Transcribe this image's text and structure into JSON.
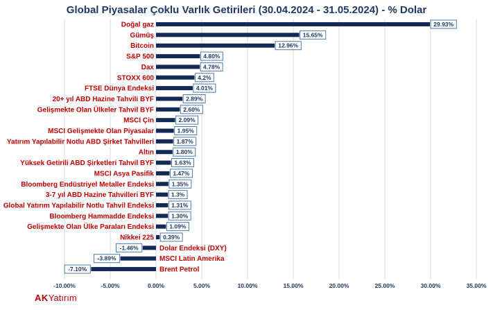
{
  "chart_data": {
    "type": "bar",
    "orientation": "horizontal",
    "title": "Global Piyasalar Çoklu Varlık Getirileri (30.04.2024 - 31.05.2024) - % Dolar",
    "categories": [
      "Doğal gaz",
      "Gümüş",
      "Bitcoin",
      "S&P 500",
      "Dax",
      "STOXX 600",
      "FTSE Dünya Endeksi",
      "20+ yıl ABD Hazine Tahvili BYF",
      "Gelişmekte Olan Ülkeler Tahvil BYF",
      "MSCI Çin",
      "MSCI Gelişmekte Olan Piyasalar",
      "Yatırım Yapılabilir Notlu  ABD Şirket Tahvilleri",
      "Altın",
      "Yüksek Getirili ABD Şirketleri Tahvil BYF",
      "MSCI Asya Pasifik",
      "Bloomberg Endüstriyel Metaller Endeksi",
      "3-7 yıl ABD Hazine Tahvilleri BYF",
      "Global Yatırım Yapılabilir Notlu Tahvil Endeksi",
      "Bloomberg Hammadde Endeksi",
      "Gelişmekte Olan Ülke Paraları Endeksi",
      "Nikkei 225",
      "Dolar Endeksi (DXY)",
      "MSCI Latin Amerika",
      "Brent Petrol"
    ],
    "values": [
      29.93,
      15.65,
      12.96,
      4.8,
      4.78,
      4.2,
      4.01,
      2.89,
      2.6,
      2.09,
      1.95,
      1.87,
      1.8,
      1.63,
      1.47,
      1.35,
      1.3,
      1.31,
      1.3,
      1.09,
      0.39,
      -1.46,
      -3.89,
      -7.1
    ],
    "value_labels": [
      "29.93%",
      "15.65%",
      "12.96%",
      "4.80%",
      "4.78%",
      "4.2%",
      "4.01%",
      "2.89%",
      "2.60%",
      "2.09%",
      "1.95%",
      "1.87%",
      "1.80%",
      "1.63%",
      "1.47%",
      "1.35%",
      "1.3%",
      "1.31%",
      "1.30%",
      "1.09%",
      "0.39%",
      "-1.46%",
      "-3.89%",
      "-7.10%"
    ],
    "xlim": [
      -10,
      35
    ],
    "xticks": [
      -10,
      -5,
      0,
      5,
      10,
      15,
      20,
      25,
      30,
      35
    ],
    "xtick_labels": [
      "-10.00%",
      "-5.00%",
      "0.00%",
      "5.00%",
      "10.00%",
      "15.00%",
      "20.00%",
      "25.00%",
      "30.00%",
      "35.00%"
    ],
    "grid": true,
    "colors": {
      "bar": "#132a57",
      "category_text": "#c00000",
      "label_border": "#4a7ab0",
      "title": "#1f3864"
    }
  },
  "logo": {
    "ak": "AK",
    "rest": "Yatırım"
  }
}
